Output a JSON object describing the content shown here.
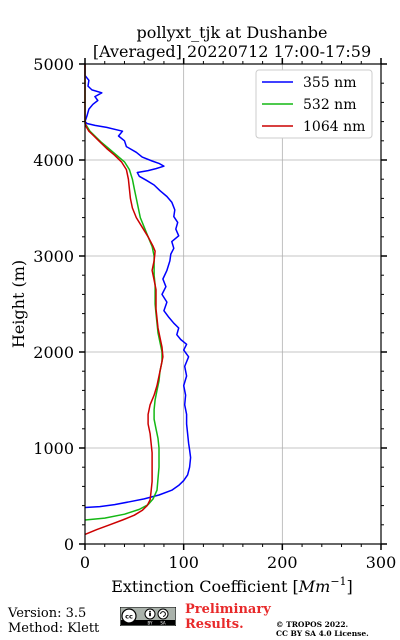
{
  "chart_data": {
    "type": "line",
    "title": [
      "pollyxt_tjk at Dushanbe",
      "[Averaged] 20220712 17:00-17:59"
    ],
    "xlabel": "Extinction Coefficient [",
    "xlabel_unit": "Mm",
    "xlabel_exp": "−1",
    "xlabel_close": "]",
    "ylabel": "Height (m)",
    "xlim": [
      0,
      300
    ],
    "ylim": [
      0,
      5000
    ],
    "xticks": [
      0,
      100,
      200,
      300
    ],
    "yticks": [
      0,
      1000,
      2000,
      3000,
      4000,
      5000
    ],
    "xtick_labels": [
      "0",
      "100",
      "200",
      "300"
    ],
    "ytick_labels": [
      "0",
      "1000",
      "2000",
      "3000",
      "4000",
      "5000"
    ],
    "grid": true,
    "legend_position": "top-right",
    "series": [
      {
        "name": "355 nm",
        "color": "#0000ff",
        "points": [
          [
            0,
            380
          ],
          [
            15,
            390
          ],
          [
            30,
            410
          ],
          [
            45,
            440
          ],
          [
            60,
            470
          ],
          [
            75,
            510
          ],
          [
            88,
            560
          ],
          [
            95,
            610
          ],
          [
            100,
            660
          ],
          [
            104,
            720
          ],
          [
            106,
            800
          ],
          [
            107,
            900
          ],
          [
            106,
            980
          ],
          [
            105,
            1050
          ],
          [
            104,
            1150
          ],
          [
            103,
            1250
          ],
          [
            103,
            1350
          ],
          [
            101,
            1450
          ],
          [
            102,
            1550
          ],
          [
            100,
            1650
          ],
          [
            103,
            1750
          ],
          [
            101,
            1850
          ],
          [
            105,
            1950
          ],
          [
            100,
            2020
          ],
          [
            103,
            2080
          ],
          [
            97,
            2130
          ],
          [
            93,
            2180
          ],
          [
            95,
            2250
          ],
          [
            90,
            2300
          ],
          [
            85,
            2360
          ],
          [
            80,
            2430
          ],
          [
            83,
            2520
          ],
          [
            78,
            2600
          ],
          [
            82,
            2680
          ],
          [
            79,
            2760
          ],
          [
            83,
            2850
          ],
          [
            86,
            2950
          ],
          [
            87,
            3020
          ],
          [
            90,
            3080
          ],
          [
            88,
            3150
          ],
          [
            95,
            3210
          ],
          [
            92,
            3280
          ],
          [
            94,
            3350
          ],
          [
            90,
            3410
          ],
          [
            91,
            3480
          ],
          [
            88,
            3560
          ],
          [
            83,
            3620
          ],
          [
            76,
            3680
          ],
          [
            70,
            3740
          ],
          [
            62,
            3790
          ],
          [
            55,
            3830
          ],
          [
            53,
            3870
          ],
          [
            64,
            3890
          ],
          [
            72,
            3910
          ],
          [
            80,
            3935
          ],
          [
            75,
            3965
          ],
          [
            68,
            3990
          ],
          [
            58,
            4030
          ],
          [
            52,
            4080
          ],
          [
            42,
            4140
          ],
          [
            40,
            4200
          ],
          [
            34,
            4250
          ],
          [
            38,
            4300
          ],
          [
            22,
            4340
          ],
          [
            10,
            4360
          ],
          [
            2,
            4380
          ],
          [
            0,
            4400
          ],
          [
            2,
            4460
          ],
          [
            4,
            4530
          ],
          [
            8,
            4580
          ],
          [
            13,
            4620
          ],
          [
            10,
            4660
          ],
          [
            17,
            4700
          ],
          [
            7,
            4730
          ],
          [
            3,
            4770
          ],
          [
            4,
            4830
          ],
          [
            0,
            4880
          ],
          [
            0,
            4960
          ],
          [
            0,
            5000
          ]
        ]
      },
      {
        "name": "532 nm",
        "color": "#14b814",
        "points": [
          [
            0,
            250
          ],
          [
            20,
            270
          ],
          [
            40,
            310
          ],
          [
            55,
            360
          ],
          [
            64,
            410
          ],
          [
            69,
            470
          ],
          [
            73,
            560
          ],
          [
            74,
            680
          ],
          [
            75,
            800
          ],
          [
            75,
            900
          ],
          [
            75,
            1000
          ],
          [
            74,
            1100
          ],
          [
            72,
            1200
          ],
          [
            70,
            1300
          ],
          [
            70,
            1400
          ],
          [
            71,
            1500
          ],
          [
            73,
            1600
          ],
          [
            75,
            1700
          ],
          [
            76,
            1800
          ],
          [
            78,
            1900
          ],
          [
            78,
            2000
          ],
          [
            76,
            2100
          ],
          [
            74,
            2200
          ],
          [
            73,
            2300
          ],
          [
            72,
            2400
          ],
          [
            71,
            2500
          ],
          [
            71,
            2600
          ],
          [
            71,
            2700
          ],
          [
            70,
            2800
          ],
          [
            70,
            2900
          ],
          [
            70,
            3000
          ],
          [
            68,
            3100
          ],
          [
            64,
            3200
          ],
          [
            60,
            3300
          ],
          [
            56,
            3400
          ],
          [
            54,
            3500
          ],
          [
            52,
            3600
          ],
          [
            50,
            3700
          ],
          [
            48,
            3800
          ],
          [
            45,
            3900
          ],
          [
            40,
            3980
          ],
          [
            32,
            4050
          ],
          [
            24,
            4120
          ],
          [
            16,
            4190
          ],
          [
            10,
            4250
          ],
          [
            5,
            4300
          ],
          [
            2,
            4350
          ],
          [
            0,
            4380
          ],
          [
            0,
            4500
          ],
          [
            0,
            4650
          ],
          [
            0,
            4800
          ],
          [
            0,
            5000
          ]
        ]
      },
      {
        "name": "1064 nm",
        "color": "#cc0000",
        "points": [
          [
            0,
            100
          ],
          [
            12,
            150
          ],
          [
            25,
            200
          ],
          [
            38,
            250
          ],
          [
            50,
            300
          ],
          [
            58,
            350
          ],
          [
            63,
            400
          ],
          [
            66,
            460
          ],
          [
            67,
            550
          ],
          [
            68,
            650
          ],
          [
            68,
            750
          ],
          [
            68,
            850
          ],
          [
            68,
            950
          ],
          [
            67,
            1050
          ],
          [
            66,
            1150
          ],
          [
            64,
            1250
          ],
          [
            64,
            1350
          ],
          [
            66,
            1450
          ],
          [
            70,
            1550
          ],
          [
            73,
            1650
          ],
          [
            75,
            1750
          ],
          [
            77,
            1850
          ],
          [
            79,
            1950
          ],
          [
            78,
            2050
          ],
          [
            76,
            2150
          ],
          [
            74,
            2250
          ],
          [
            73,
            2350
          ],
          [
            72,
            2450
          ],
          [
            72,
            2550
          ],
          [
            72,
            2650
          ],
          [
            70,
            2750
          ],
          [
            68,
            2850
          ],
          [
            70,
            2950
          ],
          [
            71,
            3050
          ],
          [
            69,
            3100
          ],
          [
            64,
            3200
          ],
          [
            58,
            3300
          ],
          [
            52,
            3400
          ],
          [
            48,
            3500
          ],
          [
            46,
            3600
          ],
          [
            45,
            3700
          ],
          [
            44,
            3800
          ],
          [
            42,
            3900
          ],
          [
            37,
            3980
          ],
          [
            30,
            4050
          ],
          [
            22,
            4120
          ],
          [
            14,
            4200
          ],
          [
            8,
            4260
          ],
          [
            4,
            4300
          ],
          [
            1,
            4350
          ],
          [
            0,
            4400
          ],
          [
            0,
            4500
          ],
          [
            0,
            4700
          ],
          [
            0,
            4850
          ],
          [
            0,
            5000
          ]
        ]
      }
    ]
  },
  "footer": {
    "version": "Version: 3.5",
    "method": "Method: Klett",
    "cc_logo_text": "cc",
    "cc_logo_by": "BY",
    "cc_logo_sa": "SA",
    "preliminary_line1": "Preliminary",
    "preliminary_line2": "Results.",
    "copyright_line1": "© TROPOS 2022.",
    "copyright_line2": "CC BY SA 4.0 License."
  },
  "colors": {
    "prelim": "#e8292a",
    "grid": "#b0b0b0"
  }
}
